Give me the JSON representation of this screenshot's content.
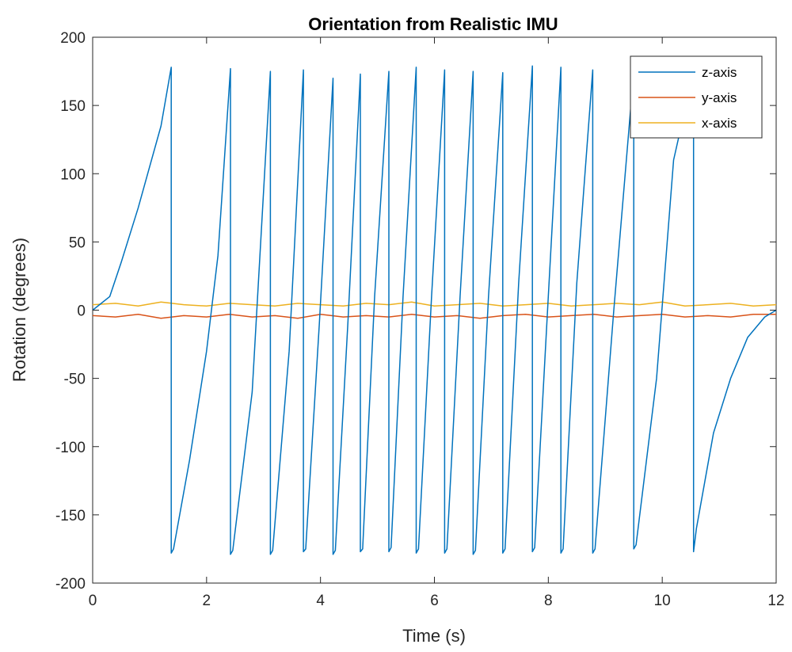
{
  "chart_data": {
    "type": "line",
    "title": "Orientation from Realistic IMU",
    "xlabel": "Time (s)",
    "ylabel": "Rotation (degrees)",
    "xlim": [
      0,
      12
    ],
    "ylim": [
      -200,
      200
    ],
    "xticks": [
      0,
      2,
      4,
      6,
      8,
      10,
      12
    ],
    "yticks": [
      -200,
      -150,
      -100,
      -50,
      0,
      50,
      100,
      150,
      200
    ],
    "grid": false,
    "legend_position": "top-right",
    "series": [
      {
        "name": "z-axis",
        "color": "#0072BD",
        "x": [
          0,
          0.3,
          0.5,
          0.8,
          1.0,
          1.2,
          1.38,
          1.38,
          1.42,
          1.7,
          2.0,
          2.2,
          2.42,
          2.42,
          2.46,
          2.8,
          3.12,
          3.12,
          3.16,
          3.45,
          3.7,
          3.7,
          3.74,
          3.98,
          4.22,
          4.22,
          4.26,
          4.48,
          4.7,
          4.7,
          4.74,
          4.95,
          5.2,
          5.2,
          5.24,
          5.45,
          5.68,
          5.68,
          5.72,
          5.95,
          6.18,
          6.18,
          6.22,
          6.45,
          6.68,
          6.68,
          6.72,
          6.95,
          7.2,
          7.2,
          7.24,
          7.48,
          7.72,
          7.72,
          7.76,
          8.0,
          8.22,
          8.22,
          8.26,
          8.5,
          8.78,
          8.78,
          8.82,
          9.15,
          9.5,
          9.5,
          9.54,
          9.9,
          10.2,
          10.55,
          10.55,
          10.6,
          10.9,
          11.2,
          11.5,
          11.8,
          12.0
        ],
        "values": [
          0,
          10,
          35,
          75,
          105,
          135,
          178,
          -178,
          -175,
          -110,
          -30,
          40,
          177,
          -179,
          -176,
          -60,
          175,
          -179,
          -176,
          -30,
          176,
          -177,
          -175,
          -10,
          170,
          -179,
          -176,
          -10,
          173,
          -177,
          -175,
          10,
          175,
          -177,
          -174,
          10,
          178,
          -178,
          -175,
          10,
          176,
          -178,
          -175,
          10,
          175,
          -179,
          -176,
          10,
          174,
          -178,
          -175,
          20,
          179,
          -177,
          -174,
          10,
          178,
          -178,
          -175,
          20,
          176,
          -178,
          -175,
          0,
          175,
          -175,
          -172,
          -50,
          110,
          175,
          -177,
          -160,
          -90,
          -50,
          -20,
          -5,
          0
        ]
      },
      {
        "name": "y-axis",
        "color": "#D95319",
        "x": [
          0,
          0.4,
          0.8,
          1.2,
          1.6,
          2.0,
          2.4,
          2.8,
          3.2,
          3.6,
          4.0,
          4.4,
          4.8,
          5.2,
          5.6,
          6.0,
          6.4,
          6.8,
          7.2,
          7.6,
          8.0,
          8.4,
          8.8,
          9.2,
          9.6,
          10.0,
          10.4,
          10.8,
          11.2,
          11.6,
          12.0
        ],
        "values": [
          -4,
          -5,
          -3,
          -6,
          -4,
          -5,
          -3,
          -5,
          -4,
          -6,
          -3,
          -5,
          -4,
          -5,
          -3,
          -5,
          -4,
          -6,
          -4,
          -3,
          -5,
          -4,
          -3,
          -5,
          -4,
          -3,
          -5,
          -4,
          -5,
          -3,
          -3
        ]
      },
      {
        "name": "x-axis",
        "color": "#EDB120",
        "x": [
          0,
          0.4,
          0.8,
          1.2,
          1.6,
          2.0,
          2.4,
          2.8,
          3.2,
          3.6,
          4.0,
          4.4,
          4.8,
          5.2,
          5.6,
          6.0,
          6.4,
          6.8,
          7.2,
          7.6,
          8.0,
          8.4,
          8.8,
          9.2,
          9.6,
          10.0,
          10.4,
          10.8,
          11.2,
          11.6,
          12.0
        ],
        "values": [
          4,
          5,
          3,
          6,
          4,
          3,
          5,
          4,
          3,
          5,
          4,
          3,
          5,
          4,
          6,
          3,
          4,
          5,
          3,
          4,
          5,
          3,
          4,
          5,
          4,
          6,
          3,
          4,
          5,
          3,
          4
        ]
      }
    ]
  }
}
